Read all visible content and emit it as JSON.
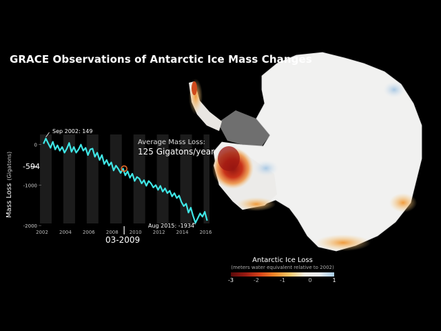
{
  "title": "GRACE Observations of Antarctic Ice Mass Changes",
  "chart_data": {
    "type": "line",
    "ylabel": "Mass Loss",
    "ylabel_unit": "(Gigatons)",
    "xlim": [
      2002,
      2016.5
    ],
    "ylim": [
      -2050,
      250
    ],
    "yticks": [
      0,
      -1000,
      -2000
    ],
    "xticks": [
      2002,
      2004,
      2006,
      2008,
      2010,
      2012,
      2014,
      2016
    ],
    "average_label": "Average Mass Loss:",
    "average_value": "125 Gigatons/year",
    "start_annotation": "Sep 2002: 149",
    "end_annotation": "Aug 2015: -1934",
    "current_value": "-594",
    "current_date": "03-2009",
    "current_point": {
      "x": 2009.2,
      "y": -594
    },
    "series": [
      {
        "name": "Antarctic Ice Mass",
        "color": "#3fe6e6",
        "x": [
          2002.3,
          2002.5,
          2002.7,
          2002.9,
          2003.1,
          2003.3,
          2003.5,
          2003.7,
          2003.9,
          2004.1,
          2004.3,
          2004.5,
          2004.7,
          2004.9,
          2005.1,
          2005.3,
          2005.5,
          2005.7,
          2005.9,
          2006.1,
          2006.3,
          2006.5,
          2006.7,
          2006.9,
          2007.1,
          2007.3,
          2007.5,
          2007.7,
          2007.9,
          2008.1,
          2008.3,
          2008.5,
          2008.7,
          2008.9,
          2009.1,
          2009.3,
          2009.5,
          2009.7,
          2009.9,
          2010.1,
          2010.3,
          2010.5,
          2010.7,
          2010.9,
          2011.1,
          2011.3,
          2011.5,
          2011.7,
          2011.9,
          2012.1,
          2012.3,
          2012.5,
          2012.7,
          2012.9,
          2013.1,
          2013.3,
          2013.5,
          2013.7,
          2013.9,
          2014.1,
          2014.3,
          2014.5,
          2014.7,
          2014.9,
          2015.1,
          2015.3,
          2015.5,
          2015.7,
          2015.9,
          2016.1,
          2016.3
        ],
        "y": [
          20,
          149,
          30,
          -80,
          70,
          -120,
          -20,
          -150,
          -60,
          -200,
          -100,
          40,
          -180,
          -60,
          -200,
          -120,
          0,
          -150,
          -80,
          -260,
          -120,
          -100,
          -300,
          -200,
          -380,
          -260,
          -480,
          -380,
          -520,
          -440,
          -640,
          -520,
          -600,
          -700,
          -594,
          -760,
          -660,
          -820,
          -720,
          -900,
          -800,
          -840,
          -960,
          -880,
          -1020,
          -900,
          -960,
          -1060,
          -1000,
          -1120,
          -1020,
          -1160,
          -1080,
          -1200,
          -1140,
          -1280,
          -1200,
          -1320,
          -1260,
          -1420,
          -1520,
          -1460,
          -1680,
          -1560,
          -1760,
          -1934,
          -1820,
          -1700,
          -1780,
          -1660,
          -1880
        ]
      }
    ]
  },
  "legend": {
    "title": "Antarctic Ice Loss",
    "subtitle": "(meters water equivalent relative to 2002)",
    "ticks": [
      "-3",
      "-2",
      "-1",
      "0",
      "1"
    ]
  }
}
